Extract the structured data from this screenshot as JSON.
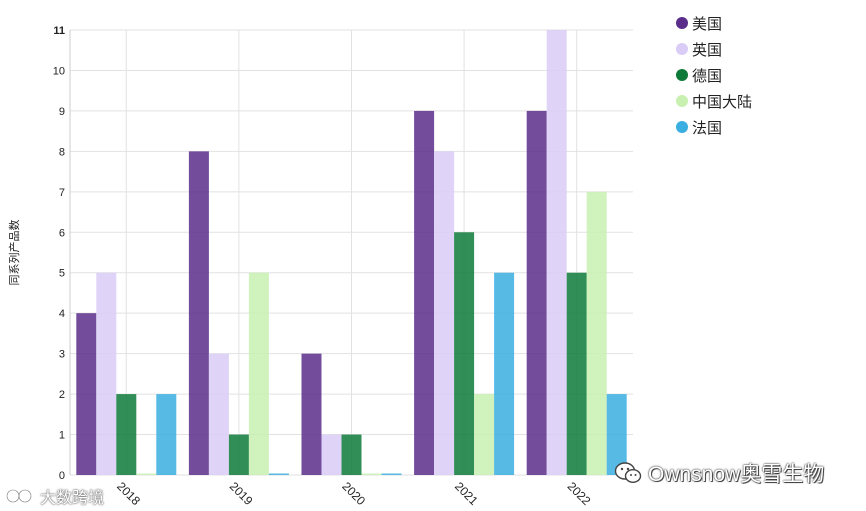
{
  "chart_data": {
    "type": "bar",
    "categories": [
      "2018",
      "2019",
      "2020",
      "2021",
      "2022"
    ],
    "series": [
      {
        "name": "美国",
        "color": "#5b2d8a",
        "values": [
          4,
          8,
          3,
          9,
          9
        ]
      },
      {
        "name": "英国",
        "color": "#d9ccf7",
        "values": [
          5,
          3,
          1,
          8,
          11
        ]
      },
      {
        "name": "德国",
        "color": "#0e7a3a",
        "values": [
          2,
          1,
          1,
          6,
          5
        ]
      },
      {
        "name": "中国大陆",
        "color": "#c8f0b0",
        "values": [
          0,
          5,
          0,
          2,
          7
        ]
      },
      {
        "name": "法国",
        "color": "#3aaee0",
        "values": [
          2,
          0,
          0,
          5,
          2
        ]
      }
    ],
    "title": "",
    "xlabel": "",
    "ylabel": "同系列产品数",
    "ylim": [
      0,
      11
    ],
    "yticks": [
      0,
      1,
      2,
      3,
      4,
      5,
      6,
      7,
      8,
      9,
      10,
      11
    ],
    "grid": true,
    "legend_position": "right"
  },
  "watermarks": {
    "right": "Ownsnow奥雪生物",
    "left": "大数跨境"
  }
}
